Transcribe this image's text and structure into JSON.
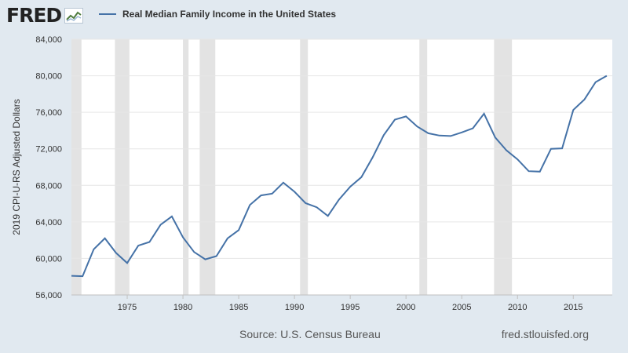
{
  "header": {
    "logo_text": "FRED",
    "logo_icon": "fred-mini-chart-icon"
  },
  "chart_data": {
    "type": "line",
    "title": "Real Median Family Income in the United States",
    "ylabel": "2019 CPI-U-RS Adjusted Dollars",
    "xlabel": "",
    "xlim": [
      1970,
      2018.5
    ],
    "ylim": [
      56000,
      84000
    ],
    "yticks": [
      56000,
      60000,
      64000,
      68000,
      72000,
      76000,
      80000,
      84000
    ],
    "ytick_labels": [
      "56,000",
      "60,000",
      "64,000",
      "68,000",
      "72,000",
      "76,000",
      "80,000",
      "84,000"
    ],
    "xticks": [
      1975,
      1980,
      1985,
      1990,
      1995,
      2000,
      2005,
      2010,
      2015
    ],
    "xtick_labels": [
      "1975",
      "1980",
      "1985",
      "1990",
      "1995",
      "2000",
      "2005",
      "2010",
      "2015"
    ],
    "grid": "horizontal",
    "line_color": "#4572a7",
    "recession_color": "#e3e3e3",
    "recessions": [
      [
        1970.0,
        1970.9
      ],
      [
        1973.9,
        1975.2
      ],
      [
        1980.0,
        1980.5
      ],
      [
        1981.5,
        1982.9
      ],
      [
        1990.5,
        1991.2
      ],
      [
        2001.2,
        2001.9
      ],
      [
        2007.9,
        2009.5
      ]
    ],
    "series": [
      {
        "name": "Real Median Family Income in the United States",
        "x": [
          1970,
          1971,
          1972,
          1973,
          1974,
          1975,
          1976,
          1977,
          1978,
          1979,
          1980,
          1981,
          1982,
          1983,
          1984,
          1985,
          1986,
          1987,
          1988,
          1989,
          1990,
          1991,
          1992,
          1993,
          1994,
          1995,
          1996,
          1997,
          1998,
          1999,
          2000,
          2001,
          2002,
          2003,
          2004,
          2005,
          2006,
          2007,
          2008,
          2009,
          2010,
          2011,
          2012,
          2013,
          2014,
          2015,
          2016,
          2017,
          2018
        ],
        "values": [
          58100,
          58050,
          61000,
          62200,
          60600,
          59500,
          61400,
          61800,
          63700,
          64600,
          62300,
          60700,
          59900,
          60250,
          62200,
          63100,
          65850,
          66900,
          67100,
          68300,
          67300,
          66050,
          65600,
          64650,
          66450,
          67850,
          68900,
          71050,
          73500,
          75200,
          75550,
          74450,
          73700,
          73450,
          73400,
          73800,
          74250,
          75850,
          73250,
          71850,
          70850,
          69550,
          69500,
          72000,
          72050,
          76250,
          77400,
          79300,
          80000
        ]
      }
    ]
  },
  "footer": {
    "source": "Source: U.S. Census Bureau",
    "url": "fred.stlouisfed.org"
  }
}
